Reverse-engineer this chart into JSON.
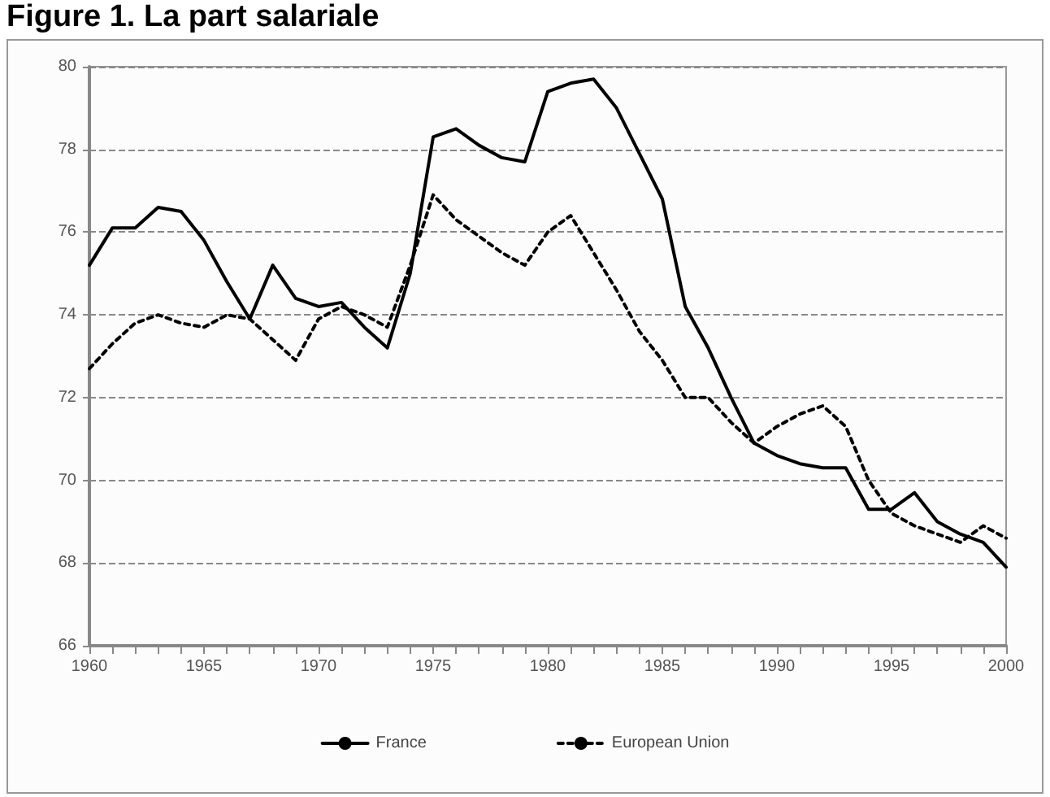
{
  "chart_data": {
    "type": "line",
    "title": "Figure 1. La part salariale",
    "x": [
      1960,
      1961,
      1962,
      1963,
      1964,
      1965,
      1966,
      1967,
      1968,
      1969,
      1970,
      1971,
      1972,
      1973,
      1974,
      1975,
      1976,
      1977,
      1978,
      1979,
      1980,
      1981,
      1982,
      1983,
      1984,
      1985,
      1986,
      1987,
      1988,
      1989,
      1990,
      1991,
      1992,
      1993,
      1994,
      1995,
      1996,
      1997,
      1998,
      1999,
      2000
    ],
    "series": [
      {
        "name": "France",
        "color": "#000000",
        "line_style": "solid",
        "values": [
          75.2,
          76.1,
          76.1,
          76.6,
          76.5,
          75.8,
          74.8,
          73.9,
          75.2,
          74.4,
          74.2,
          74.3,
          73.7,
          73.2,
          75.0,
          78.3,
          78.5,
          78.1,
          77.8,
          77.7,
          79.4,
          79.6,
          79.7,
          79.0,
          77.9,
          76.8,
          74.2,
          73.2,
          72.0,
          70.9,
          70.6,
          70.4,
          70.3,
          70.3,
          69.3,
          69.3,
          69.7,
          69.0,
          68.7,
          68.5,
          67.9
        ]
      },
      {
        "name": "European Union",
        "color": "#000000",
        "line_style": "dotted",
        "values": [
          72.7,
          73.3,
          73.8,
          74.0,
          73.8,
          73.7,
          74.0,
          73.9,
          73.4,
          72.9,
          73.9,
          74.2,
          74.0,
          73.7,
          75.2,
          76.9,
          76.3,
          75.9,
          75.5,
          75.2,
          76.0,
          76.4,
          75.5,
          74.6,
          73.6,
          72.9,
          72.0,
          72.0,
          71.4,
          70.9,
          71.3,
          71.6,
          71.8,
          71.3,
          70.0,
          69.2,
          68.9,
          68.7,
          68.5,
          68.9,
          68.6
        ]
      }
    ],
    "xlim": [
      1960,
      2000
    ],
    "xticks": [
      1960,
      {
        "value": 1961,
        "label": null
      },
      {
        "value": 1962,
        "label": null
      },
      {
        "value": 1963,
        "label": null
      },
      {
        "value": 1964,
        "label": null
      },
      1965,
      {
        "value": 1966,
        "label": null
      },
      {
        "value": 1967,
        "label": null
      },
      {
        "value": 1968,
        "label": null
      },
      {
        "value": 1969,
        "label": null
      },
      1970,
      {
        "value": 1971,
        "label": null
      },
      {
        "value": 1972,
        "label": null
      },
      {
        "value": 1973,
        "label": null
      },
      {
        "value": 1974,
        "label": null
      },
      1975,
      {
        "value": 1976,
        "label": null
      },
      {
        "value": 1977,
        "label": null
      },
      {
        "value": 1978,
        "label": null
      },
      {
        "value": 1979,
        "label": null
      },
      1980,
      {
        "value": 1981,
        "label": null
      },
      {
        "value": 1982,
        "label": null
      },
      {
        "value": 1983,
        "label": null
      },
      {
        "value": 1984,
        "label": null
      },
      1985,
      {
        "value": 1986,
        "label": null
      },
      {
        "value": 1987,
        "label": null
      },
      {
        "value": 1988,
        "label": null
      },
      {
        "value": 1989,
        "label": null
      },
      1990,
      {
        "value": 1991,
        "label": null
      },
      {
        "value": 1992,
        "label": null
      },
      {
        "value": 1993,
        "label": null
      },
      {
        "value": 1994,
        "label": null
      },
      1995,
      {
        "value": 1996,
        "label": null
      },
      {
        "value": 1997,
        "label": null
      },
      {
        "value": 1998,
        "label": null
      },
      {
        "value": 1999,
        "label": null
      },
      2000
    ],
    "ylim": [
      66,
      80
    ],
    "yticks": [
      66,
      68,
      70,
      72,
      74,
      76,
      78,
      80
    ],
    "grid": "y",
    "legend": "bottom",
    "marker": "none"
  }
}
